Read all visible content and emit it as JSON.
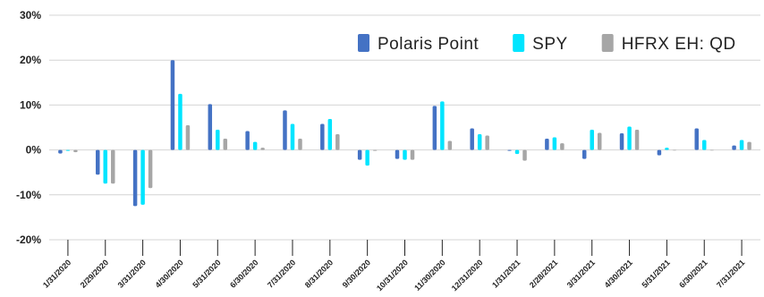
{
  "chart_data": {
    "type": "bar",
    "categories": [
      "1/31/2020",
      "2/29/2020",
      "3/31/2020",
      "4/30/2020",
      "5/31/2020",
      "6/30/2020",
      "7/31/2020",
      "8/31/2020",
      "9/30/2020",
      "10/31/2020",
      "11/30/2020",
      "12/31/2020",
      "1/31/2021",
      "2/28/2021",
      "3/31/2021",
      "4/30/2021",
      "5/31/2021",
      "6/30/2021",
      "7/31/2021"
    ],
    "series": [
      {
        "name": "Polaris Point",
        "color": "#4472c4",
        "values": [
          -0.8,
          -5.5,
          -12.5,
          20.0,
          10.2,
          4.2,
          8.8,
          5.8,
          -2.2,
          -2.0,
          9.8,
          4.8,
          -0.2,
          2.5,
          -2.0,
          3.7,
          -1.2,
          4.8,
          1.0
        ]
      },
      {
        "name": "SPY",
        "color": "#00e5ff",
        "values": [
          -0.2,
          -7.5,
          -12.2,
          12.5,
          4.5,
          1.8,
          5.8,
          6.9,
          -3.5,
          -2.2,
          10.8,
          3.5,
          -0.9,
          2.8,
          4.5,
          5.2,
          0.5,
          2.2,
          2.2
        ]
      },
      {
        "name": "HFRX EH: QD",
        "color": "#a6a6a6",
        "values": [
          -0.5,
          -7.5,
          -8.5,
          5.5,
          2.5,
          0.5,
          2.5,
          3.5,
          -0.2,
          -2.2,
          2.0,
          3.2,
          -2.4,
          1.5,
          3.8,
          4.5,
          0.0,
          0.0,
          1.8
        ]
      }
    ],
    "y_tick_labels": [
      "-20%",
      "-10%",
      "0%",
      "10%",
      "20%",
      "30%"
    ],
    "ylim": [
      -20,
      30
    ],
    "title": "",
    "xlabel": "",
    "ylabel": "",
    "legend_position": "top-right",
    "grid": true
  }
}
